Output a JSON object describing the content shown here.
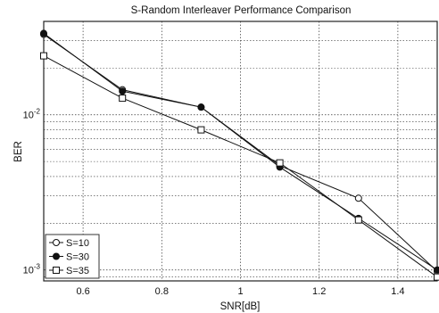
{
  "chart_data": {
    "type": "line",
    "title": "S-Random Interleaver Performance Comparison",
    "xlabel": "SNR[dB]",
    "ylabel": "BER",
    "xlim": [
      0.5,
      1.5
    ],
    "ylim": [
      0.00085,
      0.04
    ],
    "y_scale": "log",
    "grid": true,
    "x_ticks": [
      0.6,
      0.8,
      1.0,
      1.2,
      1.4
    ],
    "x_tick_labels": [
      "0.6",
      "0.8",
      "1",
      "1.2",
      "1.4"
    ],
    "y_ticks": [
      0.001,
      0.01
    ],
    "y_tick_bases": [
      "10",
      "10"
    ],
    "y_tick_exps": [
      "-3",
      "-2"
    ],
    "legend_position": "bottom-left",
    "series": [
      {
        "name": "S=10",
        "marker": "open-circle",
        "x": [
          0.5,
          0.7,
          0.9,
          1.1,
          1.3,
          1.5
        ],
        "y": [
          0.033,
          0.0145,
          0.0112,
          0.0047,
          0.0029,
          0.00098
        ]
      },
      {
        "name": "S=30",
        "marker": "filled-circle",
        "x": [
          0.5,
          0.7,
          0.9,
          1.1,
          1.3,
          1.5
        ],
        "y": [
          0.0335,
          0.0142,
          0.0112,
          0.0046,
          0.00215,
          0.001
        ]
      },
      {
        "name": "S=35",
        "marker": "open-square",
        "x": [
          0.5,
          0.7,
          0.9,
          1.1,
          1.3,
          1.5
        ],
        "y": [
          0.024,
          0.0128,
          0.008,
          0.0049,
          0.0021,
          0.0009
        ]
      }
    ]
  }
}
